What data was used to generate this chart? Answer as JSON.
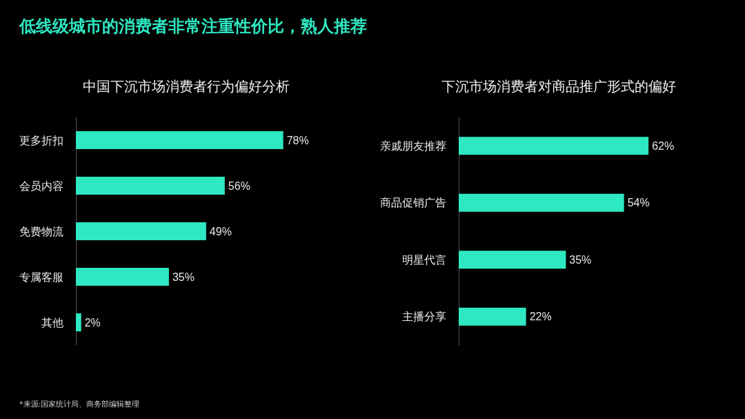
{
  "chart_data": [
    {
      "type": "bar",
      "orientation": "horizontal",
      "title": "中国下沉市场消费者行为偏好分析",
      "categories": [
        "更多折扣",
        "会员内容",
        "免费物流",
        "专属客服",
        "其他"
      ],
      "values": [
        78,
        56,
        49,
        35,
        2
      ],
      "value_labels": [
        "78%",
        "56%",
        "49%",
        "35%",
        "2%"
      ],
      "color": "#2ee8c2",
      "annotations": [
        "低线级城市的消费者非常注重性价比，熟人推荐",
        "*来源:国家统计局、商务部编辑整理"
      ]
    },
    {
      "type": "bar",
      "orientation": "horizontal",
      "title": "下沉市场消费者对商品推广形式的偏好",
      "categories": [
        "亲戚朋友推荐",
        "商品促销广告",
        "明星代言",
        "主播分享"
      ],
      "values": [
        62,
        54,
        35,
        22
      ],
      "value_labels": [
        "62%",
        "54%",
        "35%",
        "22%"
      ],
      "color": "#2ee8c2"
    }
  ]
}
